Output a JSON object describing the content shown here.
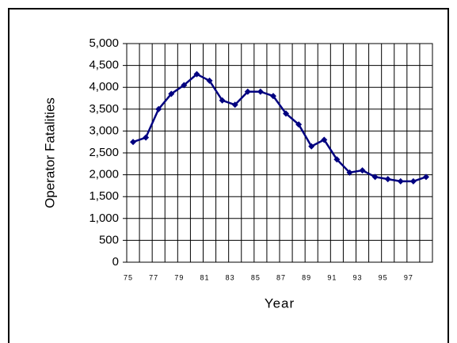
{
  "chart_data": {
    "type": "line",
    "x_label": "Year",
    "y_label": "Operator Fatalities",
    "categories": [
      "75",
      null,
      "77",
      null,
      "79",
      null,
      "81",
      null,
      "83",
      null,
      "85",
      null,
      "87",
      null,
      "89",
      null,
      "91",
      null,
      "93",
      null,
      "95",
      null,
      "97",
      null
    ],
    "series": [
      {
        "color": "#000080",
        "values": [
          2750,
          2850,
          3500,
          3850,
          4050,
          4300,
          4150,
          3700,
          3600,
          3900,
          3900,
          3800,
          3400,
          3150,
          2650,
          2800,
          2350,
          2050,
          2100,
          1950,
          1900,
          1850,
          1850,
          1950
        ]
      }
    ],
    "ylim": [
      0,
      5000
    ],
    "yticks": [
      0,
      500,
      {
        "value": 1000,
        "label": "1,000"
      },
      {
        "value": 1500,
        "label": "1,500"
      },
      {
        "value": 2000,
        "label": "2,000"
      },
      {
        "value": 2500,
        "label": "2,500"
      },
      {
        "value": 3000,
        "label": "3,000"
      },
      {
        "value": 3500,
        "label": "3,500"
      },
      {
        "value": 4000,
        "label": "4,000"
      },
      {
        "value": 4500,
        "label": "4,500"
      },
      {
        "value": 5000,
        "label": "5,000"
      }
    ],
    "grid": true
  }
}
